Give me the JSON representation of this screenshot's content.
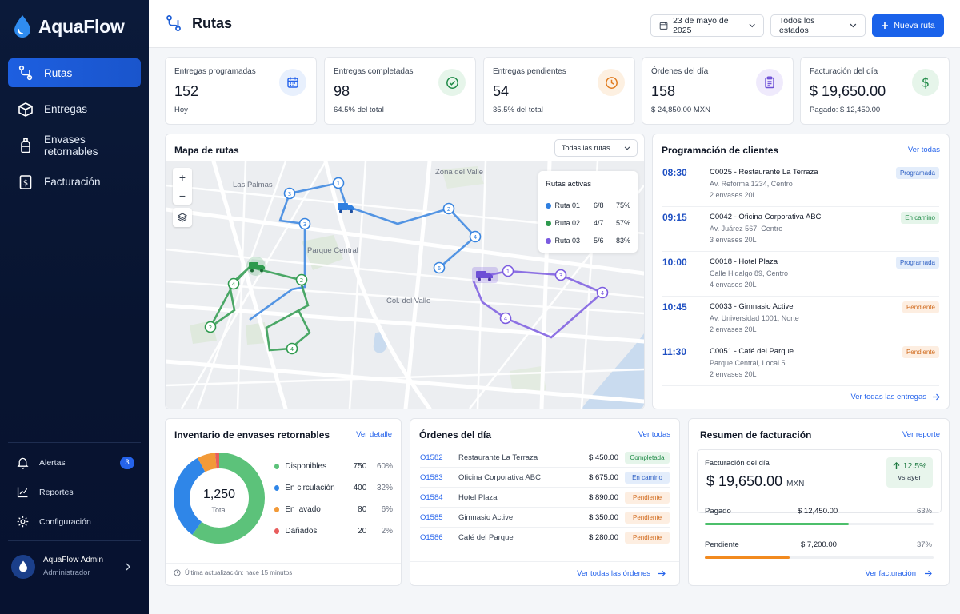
{
  "app": {
    "name": "AquaFlow"
  },
  "sidebar": {
    "items": [
      {
        "label": "Rutas",
        "icon": "route-icon",
        "active": true
      },
      {
        "label": "Entregas",
        "icon": "box-icon"
      },
      {
        "label": "Envases retornables",
        "icon": "bottle-icon"
      },
      {
        "label": "Facturación",
        "icon": "invoice-icon"
      }
    ],
    "bottom": [
      {
        "label": "Alertas",
        "icon": "bell-icon",
        "badge": "3"
      },
      {
        "label": "Reportes",
        "icon": "chart-icon"
      },
      {
        "label": "Configuración",
        "icon": "gear-icon"
      }
    ],
    "user": {
      "name": "AquaFlow Admin",
      "role": "Administrador"
    }
  },
  "header": {
    "title": "Rutas",
    "date": "23 de mayo de 2025",
    "status_filter": "Todos los estados",
    "new_route": "Nueva ruta"
  },
  "stats": [
    {
      "label": "Entregas programadas",
      "value": "152",
      "sub": "Hoy",
      "icon": "calendar-icon",
      "color": "#2563eb"
    },
    {
      "label": "Entregas completadas",
      "value": "98",
      "sub": "64.5% del total",
      "icon": "check-circle-icon",
      "color": "#1f8a47"
    },
    {
      "label": "Entregas pendientes",
      "value": "54",
      "sub": "35.5% del total",
      "icon": "clock-icon",
      "color": "#e07b1f"
    },
    {
      "label": "Órdenes del día",
      "value": "158",
      "sub": "$ 24,850.00 MXN",
      "icon": "clipboard-icon",
      "color": "#6d4fd6"
    },
    {
      "label": "Facturación del día",
      "value": "$ 19,650.00",
      "sub": "Pagado: $ 12,450.00",
      "icon": "dollar-icon",
      "color": "#1f8a47"
    }
  ],
  "map": {
    "title": "Mapa de rutas",
    "filter": "Todas las rutas",
    "labels": [
      "Zona del Valle",
      "Las Palmas",
      "Parque Central",
      "Col. del Valle"
    ],
    "legend_title": "Rutas activas",
    "routes": [
      {
        "name": "Ruta 01",
        "count": "6/8",
        "pct": "75%",
        "color": "#2f7fe0"
      },
      {
        "name": "Ruta 02",
        "count": "4/7",
        "pct": "57%",
        "color": "#2e9a4e"
      },
      {
        "name": "Ruta 03",
        "count": "5/6",
        "pct": "83%",
        "color": "#7b5be0"
      }
    ]
  },
  "schedule": {
    "title": "Programación de clientes",
    "view_all": "Ver todas",
    "rows": [
      {
        "time": "08:30",
        "name": "C0025 - Restaurante La Terraza",
        "addr": "Av. Reforma 1234, Centro",
        "qty": "2 envases 20L",
        "status": "Programada",
        "kind": "prog"
      },
      {
        "time": "09:15",
        "name": "C0042 - Oficina Corporativa ABC",
        "addr": "Av. Juárez 567, Centro",
        "qty": "3 envases 20L",
        "status": "En camino",
        "kind": "road"
      },
      {
        "time": "10:00",
        "name": "C0018 - Hotel Plaza",
        "addr": "Calle Hidalgo 89, Centro",
        "qty": "4 envases 20L",
        "status": "Programada",
        "kind": "prog"
      },
      {
        "time": "10:45",
        "name": "C0033 - Gimnasio Active",
        "addr": "Av. Universidad 1001, Norte",
        "qty": "2 envases 20L",
        "status": "Pendiente",
        "kind": "pend"
      },
      {
        "time": "11:30",
        "name": "C0051 - Café del Parque",
        "addr": "Parque Central, Local 5",
        "qty": "2 envases 20L",
        "status": "Pendiente",
        "kind": "pend"
      }
    ],
    "footer": "Ver todas las entregas"
  },
  "inventory": {
    "title": "Inventario de envases retornables",
    "detail": "Ver detalle",
    "total": "1,250",
    "total_label": "Total",
    "items": [
      {
        "label": "Disponibles",
        "value": 750,
        "pct": "60%",
        "color": "#5cc27a"
      },
      {
        "label": "En circulación",
        "value": 400,
        "pct": "32%",
        "color": "#2f86e8"
      },
      {
        "label": "En lavado",
        "value": 80,
        "pct": "6%",
        "color": "#f29a38"
      },
      {
        "label": "Dañados",
        "value": 20,
        "pct": "2%",
        "color": "#e85d5d"
      }
    ],
    "updated": "Última actualización: hace 15 minutos"
  },
  "orders": {
    "title": "Órdenes del día",
    "view_all": "Ver todas",
    "rows": [
      {
        "id": "O1582",
        "client": "Restaurante La Terraza",
        "amount": "$ 450.00",
        "status": "Completada",
        "kind": "done"
      },
      {
        "id": "O1583",
        "client": "Oficina Corporativa ABC",
        "amount": "$ 675.00",
        "status": "En camino",
        "kind": "road"
      },
      {
        "id": "O1584",
        "client": "Hotel Plaza",
        "amount": "$ 890.00",
        "status": "Pendiente",
        "kind": "pend"
      },
      {
        "id": "O1585",
        "client": "Gimnasio Active",
        "amount": "$ 350.00",
        "status": "Pendiente",
        "kind": "pend"
      },
      {
        "id": "O1586",
        "client": "Café del Parque",
        "amount": "$ 280.00",
        "status": "Pendiente",
        "kind": "pend"
      }
    ],
    "footer": "Ver todas las órdenes"
  },
  "billing": {
    "title": "Resumen de facturación",
    "report": "Ver reporte",
    "day_label": "Facturación del día",
    "day_value": "$ 19,650.00",
    "currency": "MXN",
    "change": "12.5%",
    "change_label": "vs ayer",
    "paid_label": "Pagado",
    "paid_value": "$ 12,450.00",
    "paid_pct": "63%",
    "paid_fraction": 0.63,
    "pending_label": "Pendiente",
    "pending_value": "$ 7,200.00",
    "pending_pct": "37%",
    "pending_fraction": 0.37,
    "footer": "Ver facturación"
  },
  "colors": {
    "accent": "#1a62ea",
    "sidebar": "#0b1a3a"
  }
}
